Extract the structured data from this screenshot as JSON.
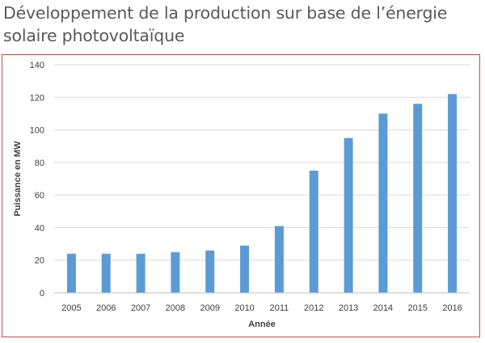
{
  "page": {
    "title": "Développement de la production sur base de l’énergie solaire photovoltaïque"
  },
  "chart_data": {
    "type": "bar",
    "categories": [
      "2005",
      "2006",
      "2007",
      "2008",
      "2009",
      "2010",
      "2011",
      "2012",
      "2013",
      "2014",
      "2015",
      "2016"
    ],
    "values": [
      24,
      24,
      24,
      25,
      26,
      29,
      41,
      75,
      95,
      110,
      116,
      122
    ],
    "xlabel": "Année",
    "ylabel": "Puissance en MW",
    "ylim": [
      0,
      140
    ],
    "yticks": [
      0,
      20,
      40,
      60,
      80,
      100,
      120,
      140
    ],
    "grid": true,
    "legend": "none",
    "colors": {
      "bar": "#5b9bd5",
      "grid": "#d9d9d9",
      "frame": "#c0504d"
    }
  }
}
